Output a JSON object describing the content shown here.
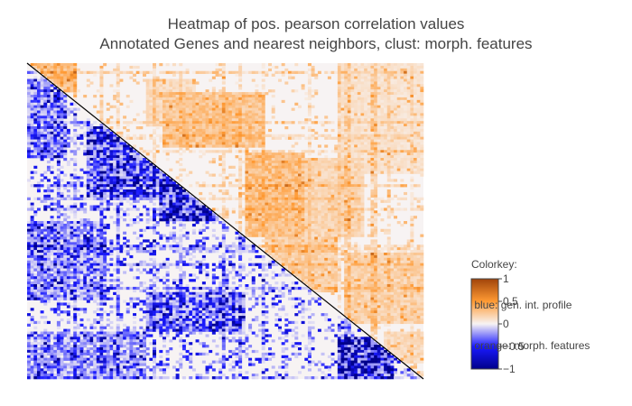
{
  "chart_data": {
    "type": "heatmap",
    "title_lines": [
      "Heatmap of pos. pearson correlation values",
      "Annotated Genes and nearest neighbors, clust: morph. features"
    ],
    "xlabel": "",
    "ylabel": "",
    "layout": "lower-left triangle: gen. int. profile (blue), upper-right triangle: morph. features (orange)",
    "colorkey": {
      "title_lines": [
        "Colorkey:",
        " blue: gen. int. profile",
        " orange: morph. features"
      ],
      "range": [
        -1,
        1
      ],
      "ticks": [
        {
          "value": 1,
          "label": "1"
        },
        {
          "value": 0.5,
          "label": "0.5"
        },
        {
          "value": 0,
          "label": "0"
        },
        {
          "value": -0.5,
          "label": "−0.5"
        },
        {
          "value": -1,
          "label": "−1"
        }
      ],
      "colorscale": [
        {
          "value": -1,
          "color": "#00008b"
        },
        {
          "value": -0.5,
          "color": "#1a1aff"
        },
        {
          "value": 0,
          "color": "#f7f3f3"
        },
        {
          "value": 0.5,
          "color": "#ff9a33"
        },
        {
          "value": 1,
          "color": "#a0440a"
        }
      ]
    },
    "blocks": {
      "upper_orange": [
        {
          "r0": 0.0,
          "r1": 0.09,
          "c0": 0.0,
          "c1": 0.12,
          "v": 0.35
        },
        {
          "r0": 0.05,
          "r1": 0.2,
          "c0": 0.3,
          "c1": 0.42,
          "v": 0.15
        },
        {
          "r0": 0.09,
          "r1": 0.26,
          "c0": 0.34,
          "c1": 0.6,
          "v": 0.28
        },
        {
          "r0": 0.28,
          "r1": 0.55,
          "c0": 0.55,
          "c1": 0.7,
          "v": 0.32
        },
        {
          "r0": 0.3,
          "r1": 0.55,
          "c0": 0.62,
          "c1": 0.85,
          "v": 0.18
        },
        {
          "r0": 0.55,
          "r1": 0.72,
          "c0": 0.6,
          "c1": 0.78,
          "v": 0.22
        },
        {
          "r0": 0.0,
          "r1": 0.35,
          "c0": 0.78,
          "c1": 1.0,
          "v": 0.1
        },
        {
          "r0": 0.6,
          "r1": 0.82,
          "c0": 0.8,
          "c1": 1.0,
          "v": 0.2
        },
        {
          "r0": 0.85,
          "r1": 0.95,
          "c0": 0.9,
          "c1": 1.0,
          "v": 0.15
        }
      ],
      "lower_blue": [
        {
          "r0": 0.05,
          "r1": 0.3,
          "c0": 0.0,
          "c1": 0.1,
          "v": -0.4
        },
        {
          "r0": 0.2,
          "r1": 0.42,
          "c0": 0.15,
          "c1": 0.34,
          "v": -0.6
        },
        {
          "r0": 0.33,
          "r1": 0.5,
          "c0": 0.33,
          "c1": 0.48,
          "v": -0.85
        },
        {
          "r0": 0.5,
          "r1": 0.75,
          "c0": 0.0,
          "c1": 0.2,
          "v": -0.35
        },
        {
          "r0": 0.72,
          "r1": 0.85,
          "c0": 0.3,
          "c1": 0.55,
          "v": -0.5
        },
        {
          "r0": 0.86,
          "r1": 1.0,
          "c0": 0.78,
          "c1": 0.92,
          "v": -0.9
        },
        {
          "r0": 0.85,
          "r1": 1.0,
          "c0": 0.0,
          "c1": 0.3,
          "v": -0.3
        }
      ]
    }
  }
}
